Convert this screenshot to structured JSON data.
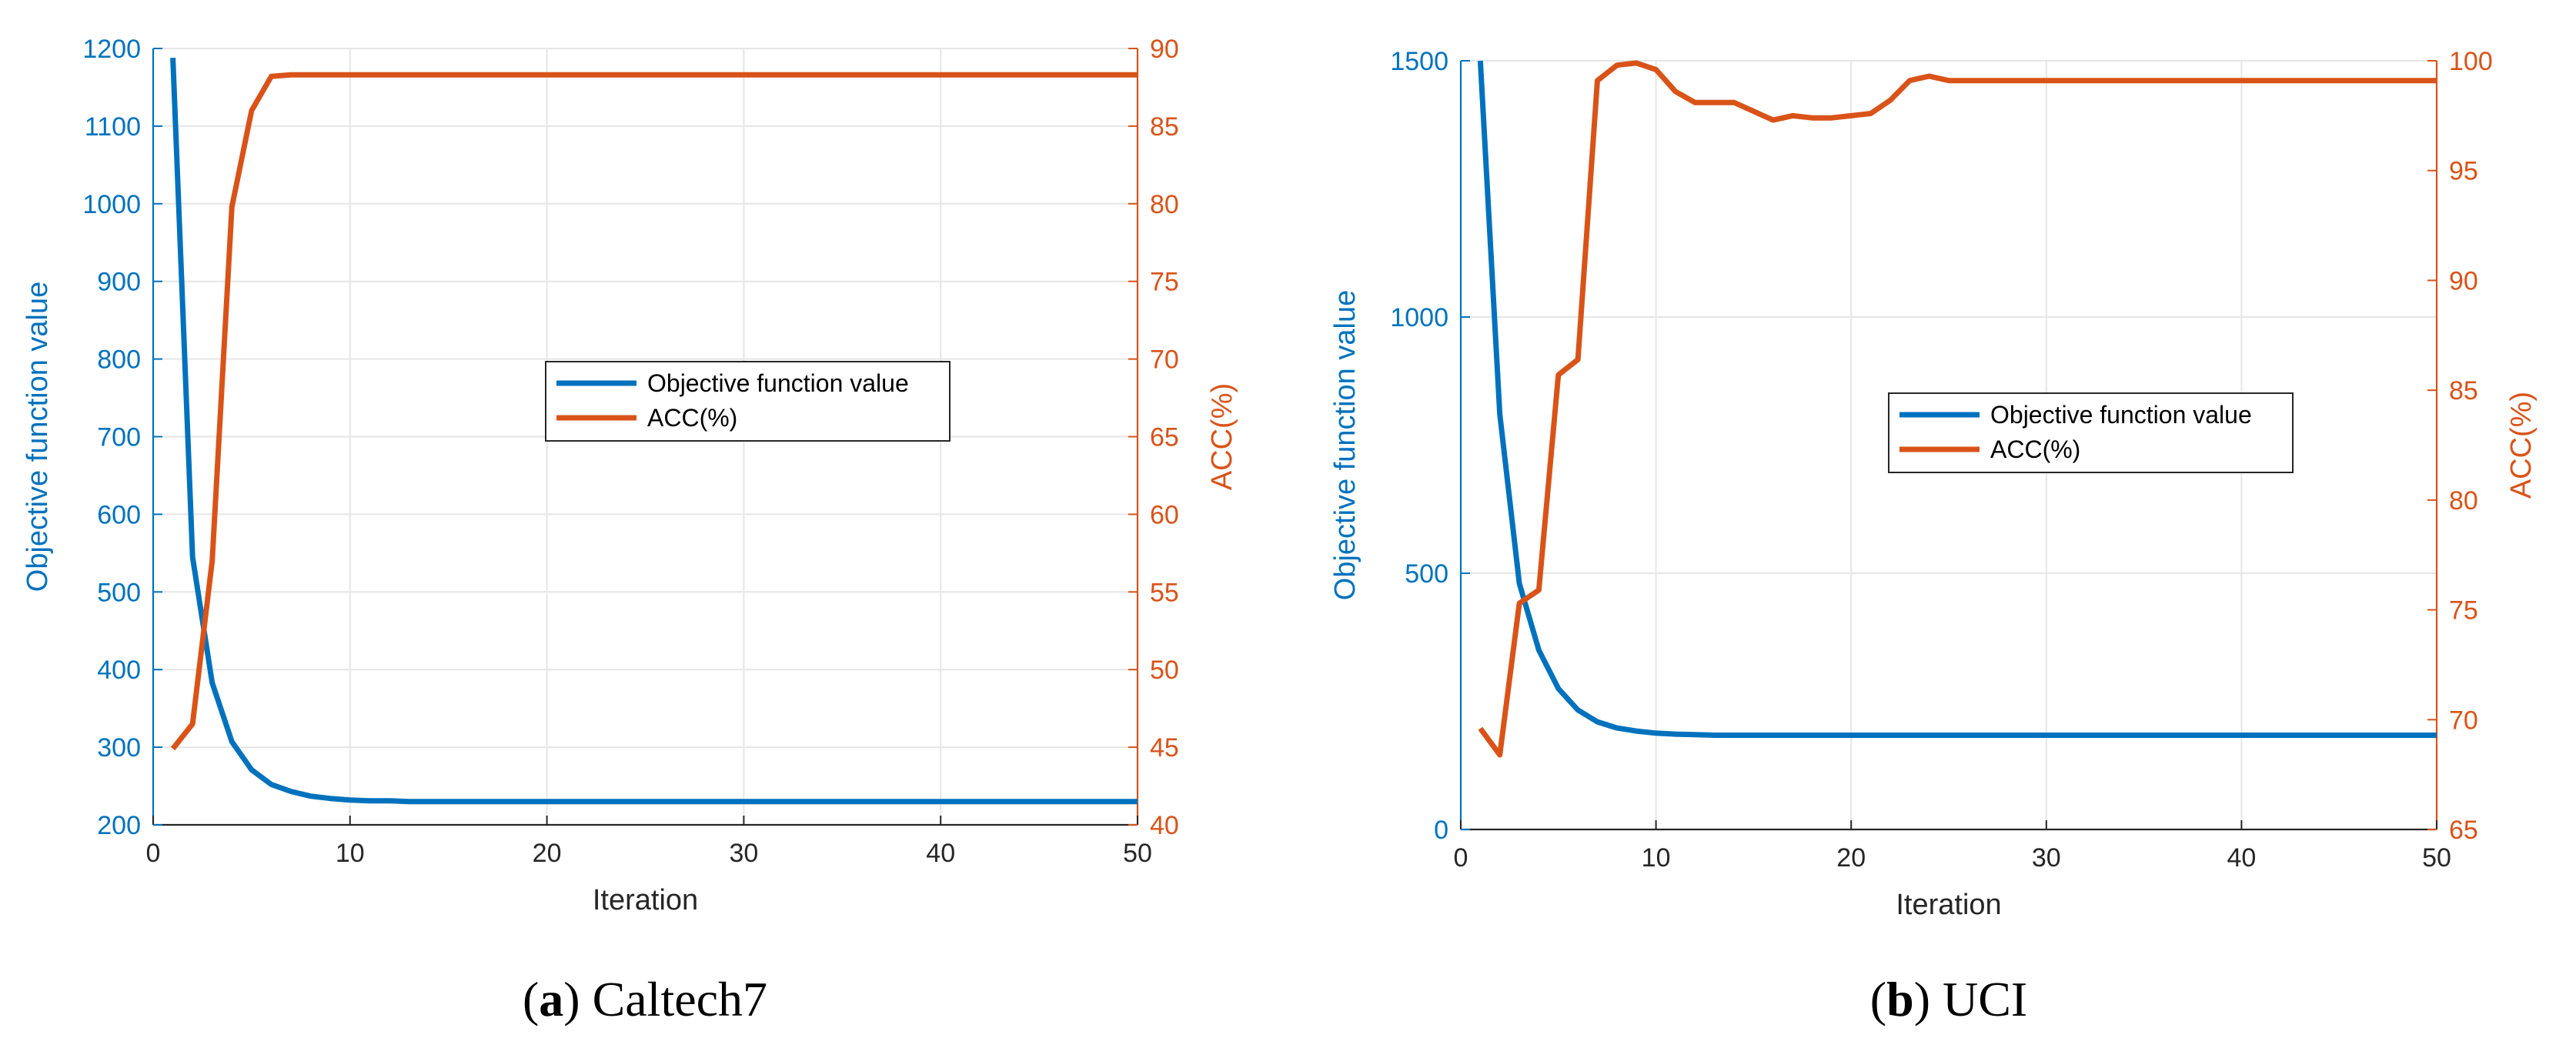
{
  "colors": {
    "objective": "#0072BD",
    "acc": "#D95319",
    "axis": "#262626"
  },
  "chart_data": [
    {
      "type": "line",
      "caption_letter": "(a)",
      "caption_text": " Caltech7",
      "xlabel": "Iteration",
      "ylabel_left": "Objective function value",
      "ylabel_right": "ACC(%)",
      "xlim": [
        0,
        50
      ],
      "ylim_left": [
        200,
        1200
      ],
      "ylim_right": [
        40,
        90
      ],
      "x_ticks": [
        "0",
        "10",
        "20",
        "30",
        "40",
        "50"
      ],
      "y_left_ticks": [
        "200",
        "300",
        "400",
        "500",
        "600",
        "700",
        "800",
        "900",
        "1000",
        "1100",
        "1200"
      ],
      "y_right_ticks": [
        "40",
        "45",
        "50",
        "55",
        "60",
        "65",
        "70",
        "75",
        "80",
        "85",
        "90"
      ],
      "legend": [
        "Objective function value",
        "ACC(%)"
      ],
      "grid": true,
      "legend_location": "center",
      "series": [
        {
          "name": "Objective function value",
          "axis": "left",
          "x": [
            1,
            2,
            3,
            4,
            5,
            6,
            7,
            8,
            9,
            10,
            11,
            12,
            13,
            14,
            15,
            16,
            17,
            18,
            19,
            20,
            21,
            22,
            23,
            24,
            25,
            26,
            27,
            28,
            29,
            30,
            31,
            32,
            33,
            34,
            35,
            36,
            37,
            38,
            39,
            40,
            41,
            42,
            43,
            44,
            45,
            46,
            47,
            48,
            49,
            50
          ],
          "y": [
            1188,
            545,
            383,
            307,
            271,
            252,
            243,
            237,
            234,
            232,
            231,
            231,
            230,
            230,
            230,
            230,
            230,
            230,
            230,
            230,
            230,
            230,
            230,
            230,
            230,
            230,
            230,
            230,
            230,
            230,
            230,
            230,
            230,
            230,
            230,
            230,
            230,
            230,
            230,
            230,
            230,
            230,
            230,
            230,
            230,
            230,
            230,
            230,
            230,
            230
          ]
        },
        {
          "name": "ACC(%)",
          "axis": "right",
          "x": [
            1,
            2,
            3,
            4,
            5,
            6,
            7,
            8,
            9,
            10,
            11,
            12,
            13,
            14,
            15,
            16,
            17,
            18,
            19,
            20,
            21,
            22,
            23,
            24,
            25,
            26,
            27,
            28,
            29,
            30,
            31,
            32,
            33,
            34,
            35,
            36,
            37,
            38,
            39,
            40,
            41,
            42,
            43,
            44,
            45,
            46,
            47,
            48,
            49,
            50
          ],
          "y": [
            44.9,
            46.5,
            57.0,
            79.8,
            86.0,
            88.2,
            88.3,
            88.3,
            88.3,
            88.3,
            88.3,
            88.3,
            88.3,
            88.3,
            88.3,
            88.3,
            88.3,
            88.3,
            88.3,
            88.3,
            88.3,
            88.3,
            88.3,
            88.3,
            88.3,
            88.3,
            88.3,
            88.3,
            88.3,
            88.3,
            88.3,
            88.3,
            88.3,
            88.3,
            88.3,
            88.3,
            88.3,
            88.3,
            88.3,
            88.3,
            88.3,
            88.3,
            88.3,
            88.3,
            88.3,
            88.3,
            88.3,
            88.3,
            88.3,
            88.3
          ]
        }
      ]
    },
    {
      "type": "line",
      "caption_letter": "(b)",
      "caption_text": " UCI",
      "xlabel": "Iteration",
      "ylabel_left": "Objective function value",
      "ylabel_right": "ACC(%)",
      "xlim": [
        0,
        50
      ],
      "ylim_left": [
        0,
        1500
      ],
      "ylim_right": [
        65,
        100
      ],
      "x_ticks": [
        "0",
        "10",
        "20",
        "30",
        "40",
        "50"
      ],
      "y_left_ticks": [
        "0",
        "500",
        "1000",
        "1500"
      ],
      "y_right_ticks": [
        "65",
        "70",
        "75",
        "80",
        "85",
        "90",
        "95",
        "100"
      ],
      "legend": [
        "Objective function value",
        "ACC(%)"
      ],
      "grid": true,
      "legend_location": "center-right",
      "series": [
        {
          "name": "Objective function value",
          "axis": "left",
          "x": [
            1,
            2,
            3,
            4,
            5,
            6,
            7,
            8,
            9,
            10,
            11,
            12,
            13,
            14,
            15,
            16,
            17,
            18,
            19,
            20,
            21,
            22,
            23,
            24,
            25,
            26,
            27,
            28,
            29,
            30,
            31,
            32,
            33,
            34,
            35,
            36,
            37,
            38,
            39,
            40,
            41,
            42,
            43,
            44,
            45,
            46,
            47,
            48,
            49,
            50
          ],
          "y": [
            1500,
            810,
            480,
            350,
            275,
            233,
            210,
            198,
            192,
            188,
            186,
            185,
            184,
            184,
            184,
            184,
            184,
            184,
            184,
            184,
            184,
            184,
            184,
            184,
            184,
            184,
            184,
            184,
            184,
            184,
            184,
            184,
            184,
            184,
            184,
            184,
            184,
            184,
            184,
            184,
            184,
            184,
            184,
            184,
            184,
            184,
            184,
            184,
            184,
            184
          ]
        },
        {
          "name": "ACC(%)",
          "axis": "right",
          "x": [
            1,
            2,
            3,
            4,
            5,
            6,
            7,
            8,
            9,
            10,
            11,
            12,
            13,
            14,
            15,
            16,
            17,
            18,
            19,
            20,
            21,
            22,
            23,
            24,
            25,
            26,
            27,
            28,
            29,
            30,
            31,
            32,
            33,
            34,
            35,
            36,
            37,
            38,
            39,
            40,
            41,
            42,
            43,
            44,
            45,
            46,
            47,
            48,
            49,
            50
          ],
          "y": [
            69.6,
            68.4,
            75.3,
            75.9,
            85.7,
            86.4,
            99.1,
            99.8,
            99.9,
            99.6,
            98.6,
            98.1,
            98.1,
            98.1,
            97.7,
            97.3,
            97.5,
            97.4,
            97.4,
            97.5,
            97.6,
            98.2,
            99.1,
            99.3,
            99.1,
            99.1,
            99.1,
            99.1,
            99.1,
            99.1,
            99.1,
            99.1,
            99.1,
            99.1,
            99.1,
            99.1,
            99.1,
            99.1,
            99.1,
            99.1,
            99.1,
            99.1,
            99.1,
            99.1,
            99.1,
            99.1,
            99.1,
            99.1,
            99.1,
            99.1
          ]
        }
      ]
    }
  ]
}
